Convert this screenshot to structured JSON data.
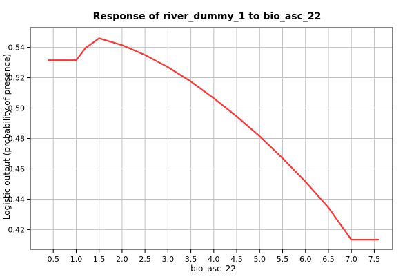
{
  "chart_data": {
    "type": "line",
    "title": "Response of river_dummy_1 to bio_asc_22",
    "xlabel": "bio_asc_22",
    "ylabel": "Logistic output (probability of presence)",
    "xlim": [
      0.0,
      7.9
    ],
    "ylim": [
      0.407,
      0.553
    ],
    "x_ticks": [
      0.5,
      1.0,
      1.5,
      2.0,
      2.5,
      3.0,
      3.5,
      4.0,
      4.5,
      5.0,
      5.5,
      6.0,
      6.5,
      7.0,
      7.5
    ],
    "x_tick_labels": [
      "0.5",
      "1.0",
      "1.5",
      "2.0",
      "2.5",
      "3.0",
      "3.5",
      "4.0",
      "4.5",
      "5.0",
      "5.5",
      "6.0",
      "6.5",
      "7.0",
      "7.5"
    ],
    "y_ticks": [
      0.42,
      0.44,
      0.46,
      0.48,
      0.5,
      0.52,
      0.54
    ],
    "y_tick_labels": [
      "0.42",
      "0.44",
      "0.46",
      "0.48",
      "0.50",
      "0.52",
      "0.54"
    ],
    "grid": true,
    "legend": "none",
    "colors": {
      "line": "#ff3333",
      "grid": "#c0c0c0",
      "axes": "#000000"
    },
    "series": [
      {
        "x": [
          0.4,
          1.0,
          1.2,
          1.5,
          2.0,
          2.5,
          3.0,
          3.5,
          4.0,
          4.5,
          5.0,
          5.5,
          6.0,
          6.5,
          7.0,
          7.6
        ],
        "y": [
          0.5315,
          0.5315,
          0.5395,
          0.546,
          0.5415,
          0.535,
          0.527,
          0.5175,
          0.5065,
          0.4945,
          0.4815,
          0.467,
          0.4515,
          0.4345,
          0.4133,
          0.4133
        ]
      }
    ]
  }
}
